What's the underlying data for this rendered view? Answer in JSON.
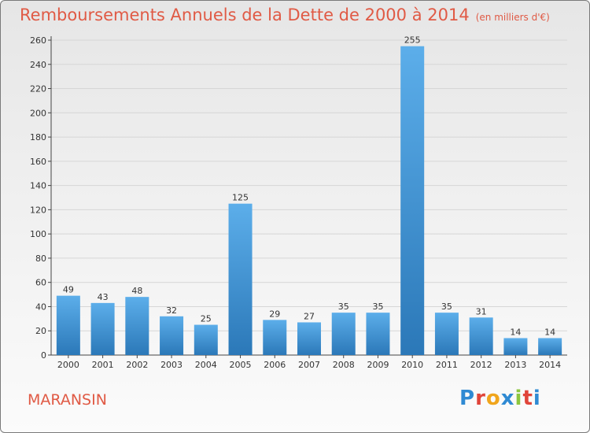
{
  "title": "Remboursements Annuels de la Dette de 2000 à 2014",
  "unit_note": "(en milliers d'€)",
  "place": "MARANSIN",
  "logo": "Proxiti",
  "colors": {
    "title": "#e05a45",
    "bar_top": "#5caeea",
    "bar_bottom": "#2b78b8",
    "gridline": "#d6d6d6",
    "logo_letters": [
      "#2f8ad3",
      "#e0453a",
      "#f0a51c",
      "#2f8ad3",
      "#8cc63f",
      "#e0453a",
      "#2f8ad3"
    ]
  },
  "chart_data": {
    "type": "bar",
    "title": "Remboursements Annuels de la Dette de 2000 à 2014",
    "xlabel": "",
    "ylabel": "",
    "categories": [
      "2000",
      "2001",
      "2002",
      "2003",
      "2004",
      "2005",
      "2006",
      "2007",
      "2008",
      "2009",
      "2010",
      "2011",
      "2012",
      "2013",
      "2014"
    ],
    "values": [
      49,
      43,
      48,
      32,
      25,
      125,
      29,
      27,
      35,
      35,
      255,
      35,
      31,
      14,
      14
    ],
    "ylim": [
      0,
      260
    ],
    "yticks": [
      0,
      20,
      40,
      60,
      80,
      100,
      120,
      140,
      160,
      180,
      200,
      220,
      240,
      260
    ],
    "grid": true
  }
}
